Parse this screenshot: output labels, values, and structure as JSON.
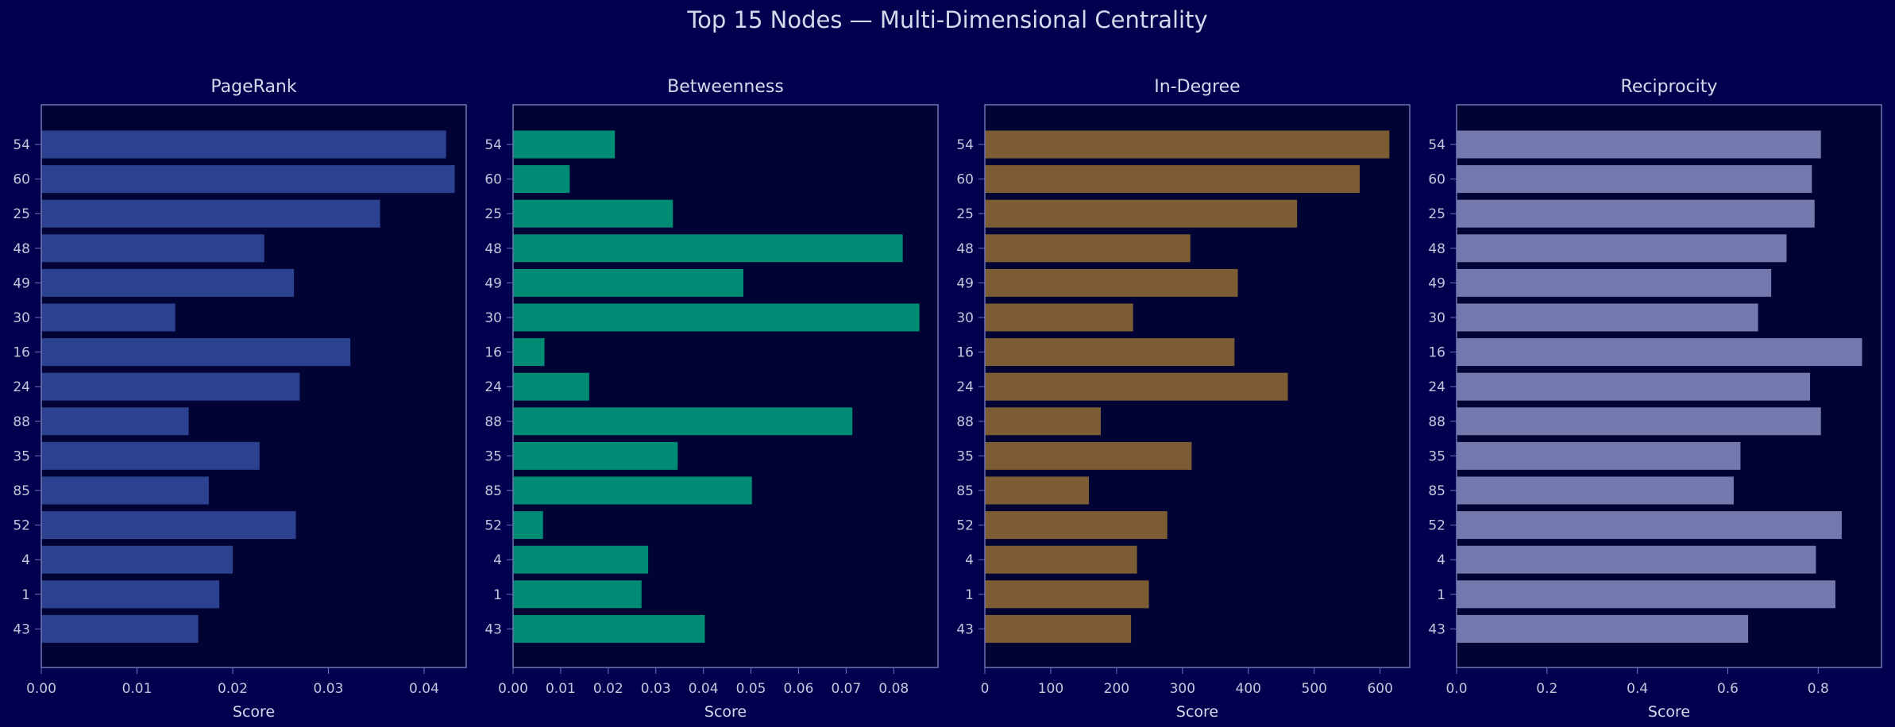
{
  "suptitle": "Top 15 Nodes — Multi-Dimensional Centrality",
  "nodes": [
    "54",
    "60",
    "25",
    "48",
    "49",
    "30",
    "16",
    "24",
    "88",
    "35",
    "85",
    "52",
    "4",
    "1",
    "43"
  ],
  "colors": {
    "background": "#00004f",
    "plot_background": "#000333",
    "spine": "#6f77b2",
    "text": "#d6d8ec",
    "tick_text": "#c4c6dc"
  },
  "chart_data": [
    {
      "type": "bar",
      "orientation": "horizontal",
      "title": "PageRank",
      "xlabel": "Score",
      "color": "#2c418f",
      "xlim": [
        0,
        0.0444
      ],
      "xticks": [
        0,
        0.01,
        0.02,
        0.03,
        0.04
      ],
      "xtick_labels": [
        "0.00",
        "0.01",
        "0.02",
        "0.03",
        "0.04"
      ],
      "categories": [
        "54",
        "60",
        "25",
        "48",
        "49",
        "30",
        "16",
        "24",
        "88",
        "35",
        "85",
        "52",
        "4",
        "1",
        "43"
      ],
      "values": [
        0.0423,
        0.0432,
        0.0354,
        0.0233,
        0.0264,
        0.014,
        0.0323,
        0.027,
        0.0154,
        0.0228,
        0.0175,
        0.0266,
        0.02,
        0.0186,
        0.0164
      ]
    },
    {
      "type": "bar",
      "orientation": "horizontal",
      "title": "Betweenness",
      "xlabel": "Score",
      "color": "#008b75",
      "xlim": [
        0,
        0.0893
      ],
      "xticks": [
        0,
        0.01,
        0.02,
        0.03,
        0.04,
        0.05,
        0.06,
        0.07,
        0.08
      ],
      "xtick_labels": [
        "0.00",
        "0.01",
        "0.02",
        "0.03",
        "0.04",
        "0.05",
        "0.06",
        "0.07",
        "0.08"
      ],
      "categories": [
        "54",
        "60",
        "25",
        "48",
        "49",
        "30",
        "16",
        "24",
        "88",
        "35",
        "85",
        "52",
        "4",
        "1",
        "43"
      ],
      "values": [
        0.0214,
        0.0119,
        0.0336,
        0.0819,
        0.0484,
        0.0854,
        0.0066,
        0.016,
        0.0713,
        0.0346,
        0.0502,
        0.0063,
        0.0284,
        0.027,
        0.0403
      ]
    },
    {
      "type": "bar",
      "orientation": "horizontal",
      "title": "In-Degree",
      "xlabel": "Score",
      "color": "#7c5c32",
      "xlim": [
        0,
        645
      ],
      "xticks": [
        0,
        100,
        200,
        300,
        400,
        500,
        600
      ],
      "xtick_labels": [
        "0",
        "100",
        "200",
        "300",
        "400",
        "500",
        "600"
      ],
      "categories": [
        "54",
        "60",
        "25",
        "48",
        "49",
        "30",
        "16",
        "24",
        "88",
        "35",
        "85",
        "52",
        "4",
        "1",
        "43"
      ],
      "values": [
        614,
        569,
        474,
        312,
        384,
        225,
        379,
        460,
        176,
        314,
        158,
        277,
        231,
        249,
        222
      ]
    },
    {
      "type": "bar",
      "orientation": "horizontal",
      "title": "Reciprocity",
      "xlabel": "Score",
      "color": "#7379ad",
      "xlim": [
        0,
        0.94
      ],
      "xticks": [
        0,
        0.2,
        0.4,
        0.6,
        0.8
      ],
      "xtick_labels": [
        "0.0",
        "0.2",
        "0.4",
        "0.6",
        "0.8"
      ],
      "categories": [
        "54",
        "60",
        "25",
        "48",
        "49",
        "30",
        "16",
        "24",
        "88",
        "35",
        "85",
        "52",
        "4",
        "1",
        "43"
      ],
      "values": [
        0.806,
        0.786,
        0.792,
        0.73,
        0.696,
        0.667,
        0.897,
        0.782,
        0.806,
        0.628,
        0.613,
        0.852,
        0.795,
        0.838,
        0.645
      ]
    }
  ]
}
